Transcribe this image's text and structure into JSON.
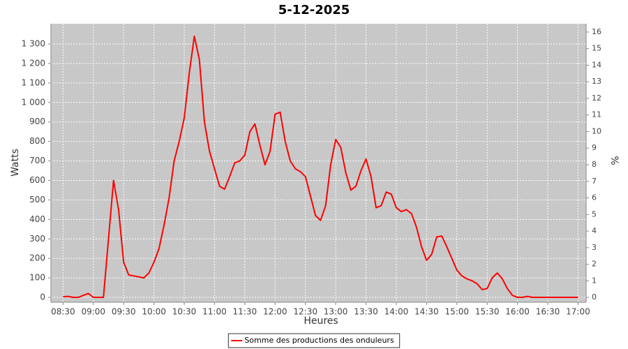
{
  "chart_data": {
    "type": "line",
    "title": "5-12-2025",
    "x_label": "Heures",
    "y_label": "Watts",
    "y2_label": "%",
    "x": [
      510,
      515,
      520,
      525,
      530,
      535,
      540,
      545,
      550,
      555,
      560,
      565,
      570,
      575,
      580,
      585,
      590,
      595,
      600,
      605,
      610,
      615,
      620,
      625,
      630,
      635,
      640,
      645,
      650,
      655,
      660,
      665,
      670,
      675,
      680,
      685,
      690,
      695,
      700,
      705,
      710,
      715,
      720,
      725,
      730,
      735,
      740,
      745,
      750,
      755,
      760,
      765,
      770,
      775,
      780,
      785,
      790,
      795,
      800,
      805,
      810,
      815,
      820,
      825,
      830,
      835,
      840,
      845,
      850,
      855,
      860,
      865,
      870,
      875,
      880,
      885,
      890,
      895,
      900,
      905,
      910,
      915,
      920,
      925,
      930,
      935,
      940,
      945,
      950,
      955,
      960,
      965,
      970,
      975,
      980,
      985,
      990,
      995,
      1000,
      1005,
      1010,
      1015,
      1020
    ],
    "series": [
      {
        "name": "Somme des productions des onduleurs",
        "color": "#ff0000",
        "values": [
          3,
          5,
          0,
          0,
          10,
          20,
          0,
          0,
          0,
          300,
          600,
          450,
          180,
          115,
          110,
          105,
          100,
          125,
          180,
          250,
          370,
          510,
          700,
          800,
          920,
          1150,
          1340,
          1220,
          900,
          750,
          660,
          570,
          555,
          620,
          690,
          700,
          730,
          850,
          890,
          780,
          680,
          750,
          940,
          950,
          800,
          700,
          660,
          645,
          620,
          520,
          420,
          395,
          470,
          680,
          810,
          770,
          640,
          550,
          570,
          650,
          710,
          620,
          460,
          470,
          540,
          530,
          460,
          440,
          450,
          430,
          360,
          260,
          190,
          220,
          310,
          315,
          260,
          200,
          140,
          110,
          95,
          85,
          70,
          40,
          45,
          100,
          125,
          95,
          45,
          10,
          0,
          0,
          5,
          0,
          0,
          0,
          0,
          0,
          0,
          0,
          0,
          0,
          0
        ]
      }
    ],
    "xlim": [
      498,
      1028
    ],
    "xticks": [
      {
        "value": 510,
        "label": "08:30"
      },
      {
        "value": 540,
        "label": "09:00"
      },
      {
        "value": 570,
        "label": "09:30"
      },
      {
        "value": 600,
        "label": "10:00"
      },
      {
        "value": 630,
        "label": "10:30"
      },
      {
        "value": 660,
        "label": "11:00"
      },
      {
        "value": 690,
        "label": "11:30"
      },
      {
        "value": 720,
        "label": "12:00"
      },
      {
        "value": 750,
        "label": "12:30"
      },
      {
        "value": 780,
        "label": "13:00"
      },
      {
        "value": 810,
        "label": "13:30"
      },
      {
        "value": 840,
        "label": "14:00"
      },
      {
        "value": 870,
        "label": "14:30"
      },
      {
        "value": 900,
        "label": "15:00"
      },
      {
        "value": 930,
        "label": "15:30"
      },
      {
        "value": 960,
        "label": "16:00"
      },
      {
        "value": 990,
        "label": "16:30"
      },
      {
        "value": 1020,
        "label": "17:00"
      }
    ],
    "ylim": [
      -25,
      1404
    ],
    "yticks": [
      0,
      100,
      200,
      300,
      400,
      500,
      600,
      700,
      800,
      900,
      {
        "value": 1000,
        "label": "1 000"
      },
      {
        "value": 1100,
        "label": "1 100"
      },
      {
        "value": 1200,
        "label": "1 200"
      },
      {
        "value": 1300,
        "label": "1 300"
      }
    ],
    "y2lim": [
      -0.29,
      16.5
    ],
    "y2ticks": [
      0,
      1,
      2,
      3,
      4,
      5,
      6,
      7,
      8,
      9,
      10,
      11,
      12,
      13,
      14,
      15,
      16
    ],
    "grid": true,
    "legend": "bottom",
    "plot_background": "#c8c8c8"
  }
}
